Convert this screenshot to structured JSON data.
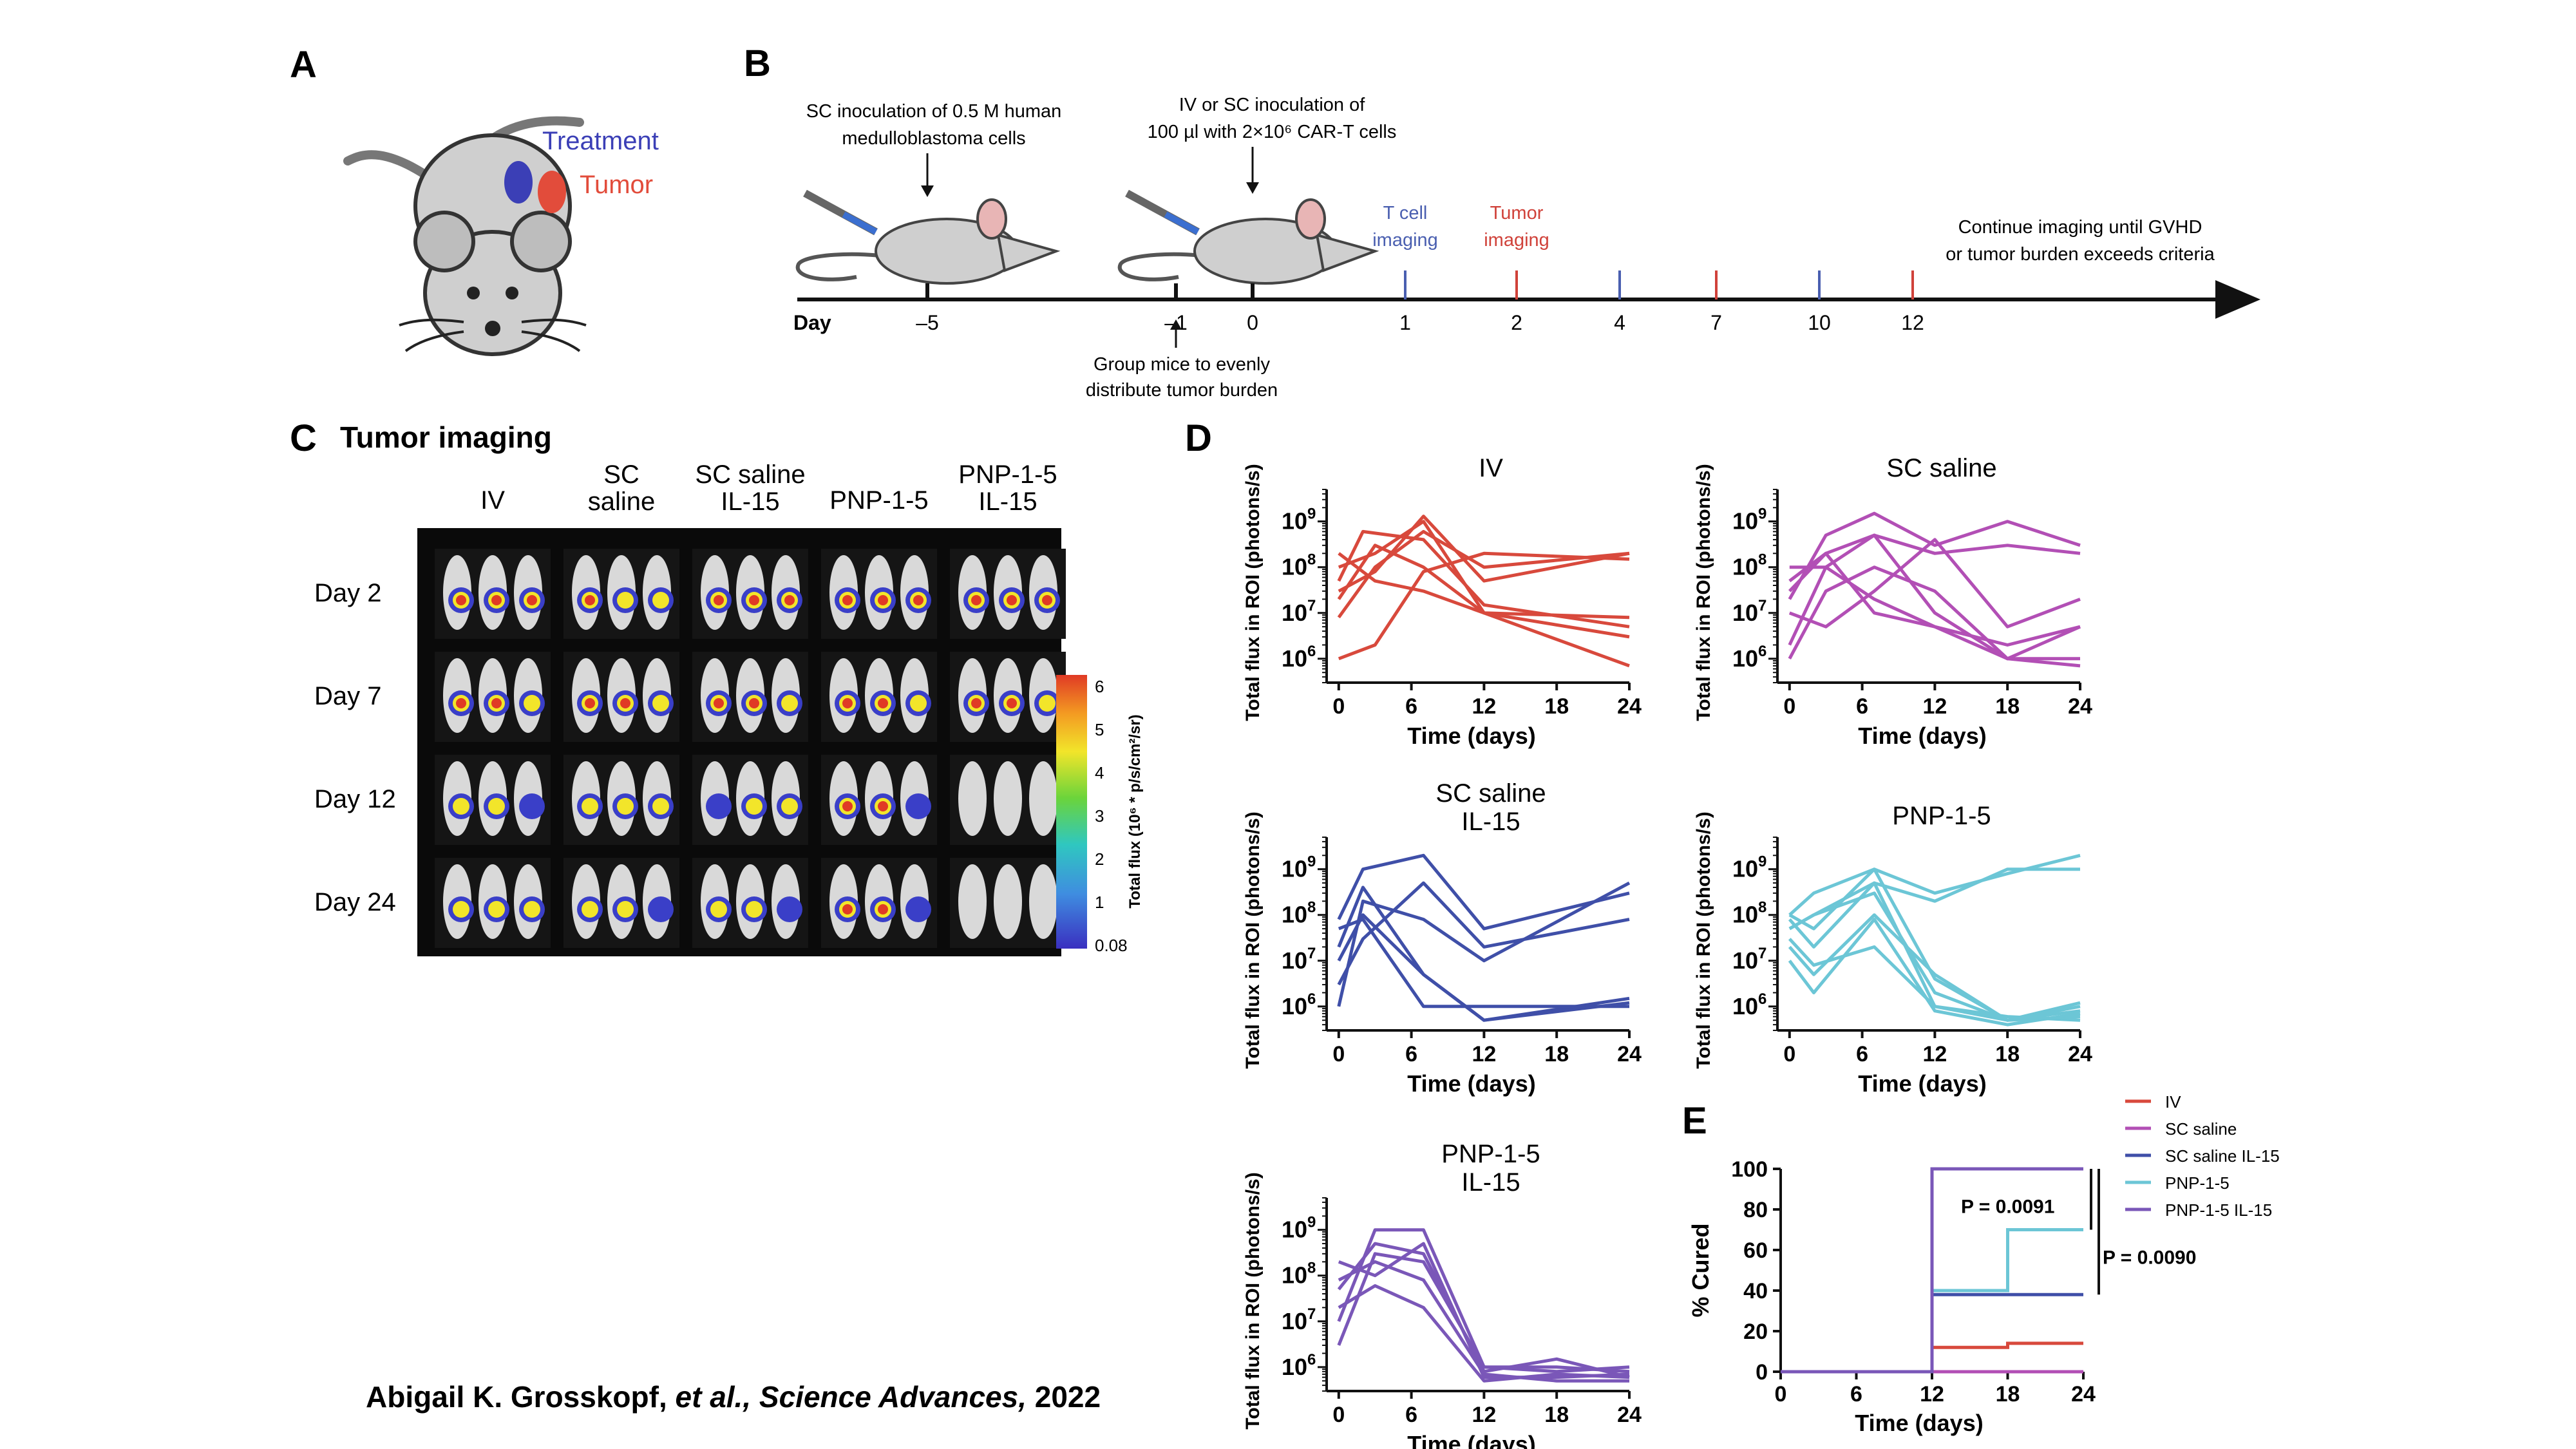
{
  "panels": {
    "A": {
      "letter": "A",
      "labels": {
        "treatment": "Treatment",
        "tumor": "Tumor"
      },
      "colors": {
        "treatment": "#3b3fb6",
        "tumor": "#e24c3b",
        "mouse": "#cfcfcf"
      }
    },
    "B": {
      "letter": "B",
      "step1": [
        "SC inoculation of 0.5 M human",
        "medulloblastoma cells"
      ],
      "step2": [
        "IV or SC inoculation of",
        "100 µl with 2×10⁶ CAR-T cells"
      ],
      "tcell": [
        "T cell",
        "imaging"
      ],
      "tumor": [
        "Tumor",
        "imaging"
      ],
      "continue": [
        "Continue imaging until GVHD",
        "or tumor burden exceeds criteria"
      ],
      "group": [
        "Group mice to evenly",
        "distribute tumor burden"
      ],
      "day_label": "Day",
      "days": [
        {
          "label": "–5",
          "kind": "black"
        },
        {
          "label": "–1",
          "kind": "black"
        },
        {
          "label": "0",
          "kind": "black"
        },
        {
          "label": "1",
          "kind": "blue"
        },
        {
          "label": "2",
          "kind": "red"
        },
        {
          "label": "4",
          "kind": "blue"
        },
        {
          "label": "7",
          "kind": "red"
        },
        {
          "label": "10",
          "kind": "blue"
        },
        {
          "label": "12",
          "kind": "red"
        }
      ],
      "colors": {
        "blue": "#4a5fb0",
        "red": "#d0423a"
      }
    },
    "C": {
      "letter": "C",
      "title": "Tumor imaging",
      "columns": [
        [
          "IV"
        ],
        [
          "SC",
          "saline"
        ],
        [
          "SC saline",
          "IL-15"
        ],
        [
          "PNP-1-5"
        ],
        [
          "PNP-1-5",
          "IL-15"
        ]
      ],
      "rows": [
        "Day 2",
        "Day 7",
        "Day 12",
        "Day 24"
      ],
      "colorbar_ticks": [
        "6",
        "5",
        "4",
        "3",
        "2",
        "1",
        "0.08"
      ],
      "colorbar_label": "Total flux (10⁶ * p/s/cm²/sr)",
      "signal": [
        [
          3,
          3,
          3,
          3,
          2,
          2,
          3,
          3,
          3,
          3,
          3,
          3,
          3,
          3,
          3
        ],
        [
          3,
          3,
          2,
          3,
          3,
          2,
          3,
          3,
          2,
          3,
          3,
          2,
          3,
          3,
          2
        ],
        [
          2,
          2,
          1,
          2,
          2,
          2,
          1,
          2,
          2,
          3,
          3,
          1,
          0,
          0,
          0
        ],
        [
          2,
          2,
          2,
          2,
          2,
          1,
          2,
          2,
          1,
          3,
          3,
          1,
          0,
          0,
          0
        ]
      ]
    },
    "D": {
      "letter": "D",
      "ylabel": "Total flux in ROI (photons/s)",
      "xlabel": "Time (days)",
      "xticks": [
        "0",
        "6",
        "12",
        "18",
        "24"
      ],
      "yticks": [
        "6",
        "7",
        "8",
        "9"
      ]
    },
    "E": {
      "letter": "E",
      "ylabel": "% Cured",
      "xlabel": "Time (days)",
      "xticks": [
        "0",
        "6",
        "12",
        "18",
        "24"
      ],
      "yticks": [
        "0",
        "20",
        "40",
        "60",
        "80",
        "100"
      ],
      "p1": "P = 0.0091",
      "p2": "P = 0.0090"
    }
  },
  "chart_data": [
    {
      "type": "line",
      "title": "IV",
      "xlabel": "Time (days)",
      "ylabel": "Total flux in ROI (photons/s)",
      "yscale": "log",
      "xlim": [
        -1,
        24
      ],
      "ylim": [
        300000,
        5000000000
      ],
      "color": "#d8493c",
      "series": [
        {
          "x": [
            0,
            3,
            7,
            12,
            24
          ],
          "y": [
            20000000.0,
            300000000.0,
            100000000.0,
            10000000.0,
            8000000.0
          ]
        },
        {
          "x": [
            0,
            3,
            7,
            12,
            24
          ],
          "y": [
            30000000.0,
            80000000.0,
            1300000000.0,
            50000000.0,
            200000000.0
          ]
        },
        {
          "x": [
            0,
            3,
            7,
            12,
            24
          ],
          "y": [
            1000000.0,
            2000000.0,
            80000000.0,
            200000000.0,
            150000000.0
          ]
        },
        {
          "x": [
            0,
            2,
            7,
            12,
            24
          ],
          "y": [
            50000000.0,
            600000000.0,
            400000000.0,
            15000000.0,
            5000000.0
          ]
        },
        {
          "x": [
            0,
            3,
            7,
            12,
            24
          ],
          "y": [
            8000000.0,
            100000000.0,
            600000000.0,
            100000000.0,
            200000000.0
          ]
        },
        {
          "x": [
            0,
            3,
            7,
            12,
            24
          ],
          "y": [
            100000000.0,
            200000000.0,
            1000000000.0,
            10000000.0,
            700000.0
          ]
        },
        {
          "x": [
            0,
            3,
            7,
            12,
            24
          ],
          "y": [
            200000000.0,
            50000000.0,
            30000000.0,
            10000000.0,
            3000000.0
          ]
        }
      ]
    },
    {
      "type": "line",
      "title": "SC saline",
      "xlabel": "Time (days)",
      "ylabel": "Total flux in ROI (photons/s)",
      "yscale": "log",
      "xlim": [
        -1,
        24
      ],
      "ylim": [
        300000,
        5000000000
      ],
      "color": "#b24fb5",
      "series": [
        {
          "x": [
            0,
            3,
            7,
            12,
            18,
            24
          ],
          "y": [
            20000000.0,
            500000000.0,
            1500000000.0,
            300000000.0,
            1000000000.0,
            300000000.0
          ]
        },
        {
          "x": [
            0,
            3,
            7,
            12,
            18,
            24
          ],
          "y": [
            100000000.0,
            100000000.0,
            500000000.0,
            200000000.0,
            300000000.0,
            200000000.0
          ]
        },
        {
          "x": [
            0,
            3,
            7,
            12,
            18,
            24
          ],
          "y": [
            1000000.0,
            30000000.0,
            100000000.0,
            30000000.0,
            1000000.0,
            700000.0
          ]
        },
        {
          "x": [
            0,
            3,
            7,
            12,
            18,
            24
          ],
          "y": [
            30000000.0,
            200000000.0,
            10000000.0,
            5000000.0,
            1000000.0,
            5000000.0
          ]
        },
        {
          "x": [
            0,
            3,
            7,
            12,
            18,
            24
          ],
          "y": [
            10000000.0,
            5000000.0,
            30000000.0,
            400000000.0,
            5000000.0,
            20000000.0
          ]
        },
        {
          "x": [
            0,
            3,
            7,
            12,
            18,
            24
          ],
          "y": [
            50000000.0,
            200000000.0,
            500000000.0,
            10000000.0,
            1000000.0,
            1000000.0
          ]
        },
        {
          "x": [
            0,
            3,
            7,
            12,
            18,
            24
          ],
          "y": [
            2000000.0,
            100000000.0,
            20000000.0,
            5000000.0,
            2000000.0,
            5000000.0
          ]
        }
      ]
    },
    {
      "type": "line",
      "title": "SC saline IL-15",
      "xlabel": "Time (days)",
      "ylabel": "Total flux in ROI (photons/s)",
      "yscale": "log",
      "xlim": [
        -1,
        24
      ],
      "ylim": [
        300000,
        5000000000
      ],
      "color": "#3f4fa8",
      "series": [
        {
          "x": [
            0,
            2,
            7,
            12,
            24
          ],
          "y": [
            80000000.0,
            1000000000.0,
            2000000000.0,
            50000000.0,
            300000000.0
          ]
        },
        {
          "x": [
            0,
            2,
            7,
            12,
            24
          ],
          "y": [
            20000000.0,
            400000000.0,
            5000000.0,
            500000.0,
            1500000.0
          ]
        },
        {
          "x": [
            0,
            2,
            7,
            12,
            24
          ],
          "y": [
            1000000.0,
            200000000.0,
            80000000.0,
            10000000.0,
            500000000.0
          ]
        },
        {
          "x": [
            0,
            2,
            7,
            12,
            24
          ],
          "y": [
            50000000.0,
            80000000.0,
            1000000.0,
            1000000.0,
            1000000.0
          ]
        },
        {
          "x": [
            0,
            2,
            7,
            12,
            24
          ],
          "y": [
            3000000.0,
            30000000.0,
            500000000.0,
            20000000.0,
            80000000.0
          ]
        },
        {
          "x": [
            0,
            2,
            7,
            12,
            24
          ],
          "y": [
            10000000.0,
            100000000.0,
            5000000.0,
            500000.0,
            1200000.0
          ]
        }
      ]
    },
    {
      "type": "line",
      "title": "PNP-1-5",
      "xlabel": "Time (days)",
      "ylabel": "Total flux in ROI (photons/s)",
      "yscale": "log",
      "xlim": [
        -1,
        24
      ],
      "ylim": [
        300000,
        5000000000
      ],
      "color": "#6cc6d6",
      "series": [
        {
          "x": [
            0,
            2,
            7,
            12,
            18,
            24
          ],
          "y": [
            100000000.0,
            300000000.0,
            1000000000.0,
            300000000.0,
            800000000.0,
            2000000000.0
          ]
        },
        {
          "x": [
            0,
            2,
            7,
            12,
            18,
            24
          ],
          "y": [
            50000000.0,
            100000000.0,
            500000000.0,
            200000000.0,
            1000000000.0,
            1000000000.0
          ]
        },
        {
          "x": [
            0,
            2,
            7,
            12,
            18,
            24
          ],
          "y": [
            20000000.0,
            5000000.0,
            100000000.0,
            5000000.0,
            500000.0,
            600000.0
          ]
        },
        {
          "x": [
            0,
            2,
            7,
            12,
            18,
            24
          ],
          "y": [
            80000000.0,
            20000000.0,
            500000000.0,
            1000000.0,
            500000.0,
            1000000.0
          ]
        },
        {
          "x": [
            0,
            2,
            7,
            12,
            18,
            24
          ],
          "y": [
            10000000.0,
            2000000.0,
            80000000.0,
            800000.0,
            400000.0,
            700000.0
          ]
        },
        {
          "x": [
            0,
            2,
            7,
            12,
            18,
            24
          ],
          "y": [
            50000000.0,
            100000000.0,
            300000000.0,
            2000000.0,
            500000.0,
            800000.0
          ]
        },
        {
          "x": [
            0,
            2,
            7,
            12,
            18,
            24
          ],
          "y": [
            30000000.0,
            8000000.0,
            20000000.0,
            1000000.0,
            600000.0,
            500000.0
          ]
        },
        {
          "x": [
            0,
            2,
            7,
            12,
            18,
            24
          ],
          "y": [
            100000000.0,
            50000000.0,
            1000000000.0,
            4000000.0,
            500000.0,
            1200000.0
          ]
        }
      ]
    },
    {
      "type": "line",
      "title": "PNP-1-5 IL-15",
      "xlabel": "Time (days)",
      "ylabel": "Total flux in ROI (photons/s)",
      "yscale": "log",
      "xlim": [
        -1,
        24
      ],
      "ylim": [
        300000,
        5000000000
      ],
      "color": "#7a57b8",
      "series": [
        {
          "x": [
            0,
            3,
            7,
            12,
            18,
            24
          ],
          "y": [
            10000000.0,
            1000000000.0,
            1000000000.0,
            1000000.0,
            1000000.0,
            800000.0
          ]
        },
        {
          "x": [
            0,
            3,
            7,
            12,
            18,
            24
          ],
          "y": [
            50000000.0,
            500000000.0,
            300000000.0,
            800000.0,
            1500000.0,
            600000.0
          ]
        },
        {
          "x": [
            0,
            3,
            7,
            12,
            18,
            24
          ],
          "y": [
            200000000.0,
            100000000.0,
            500000000.0,
            600000.0,
            600000.0,
            700000.0
          ]
        },
        {
          "x": [
            0,
            3,
            7,
            12,
            18,
            24
          ],
          "y": [
            3000000.0,
            300000000.0,
            200000000.0,
            1000000.0,
            800000.0,
            1000000.0
          ]
        },
        {
          "x": [
            0,
            3,
            7,
            12,
            18,
            24
          ],
          "y": [
            80000000.0,
            200000000.0,
            80000000.0,
            700000.0,
            500000.0,
            500000.0
          ]
        },
        {
          "x": [
            0,
            3,
            7,
            12,
            18,
            24
          ],
          "y": [
            20000000.0,
            60000000.0,
            20000000.0,
            500000.0,
            700000.0,
            600000.0
          ]
        }
      ]
    },
    {
      "type": "line",
      "xlabel": "Time (days)",
      "ylabel": "% Cured",
      "xlim": [
        0,
        24
      ],
      "ylim": [
        0,
        100
      ],
      "legend_position": "top-right",
      "series": [
        {
          "name": "IV",
          "color": "#d8493c",
          "x": [
            0,
            12,
            12,
            18,
            18,
            24
          ],
          "y": [
            0,
            0,
            12,
            12,
            14,
            14
          ]
        },
        {
          "name": "SC saline",
          "color": "#b24fb5",
          "x": [
            0,
            24
          ],
          "y": [
            0,
            0
          ]
        },
        {
          "name": "SC saline IL-15",
          "color": "#3f4fa8",
          "x": [
            0,
            12,
            12,
            24
          ],
          "y": [
            0,
            0,
            38,
            38
          ]
        },
        {
          "name": "PNP-1-5",
          "color": "#6cc6d6",
          "x": [
            0,
            12,
            12,
            18,
            18,
            24
          ],
          "y": [
            0,
            0,
            40,
            40,
            70,
            70
          ]
        },
        {
          "name": "PNP-1-5 IL-15",
          "color": "#7a57b8",
          "x": [
            0,
            12,
            12,
            24
          ],
          "y": [
            0,
            0,
            100,
            100
          ]
        }
      ]
    }
  ],
  "citation": {
    "authors": "Abigail K. Grosskopf,",
    "etal": "et al.,",
    "journal": "Science Advances,",
    "year": "2022"
  }
}
